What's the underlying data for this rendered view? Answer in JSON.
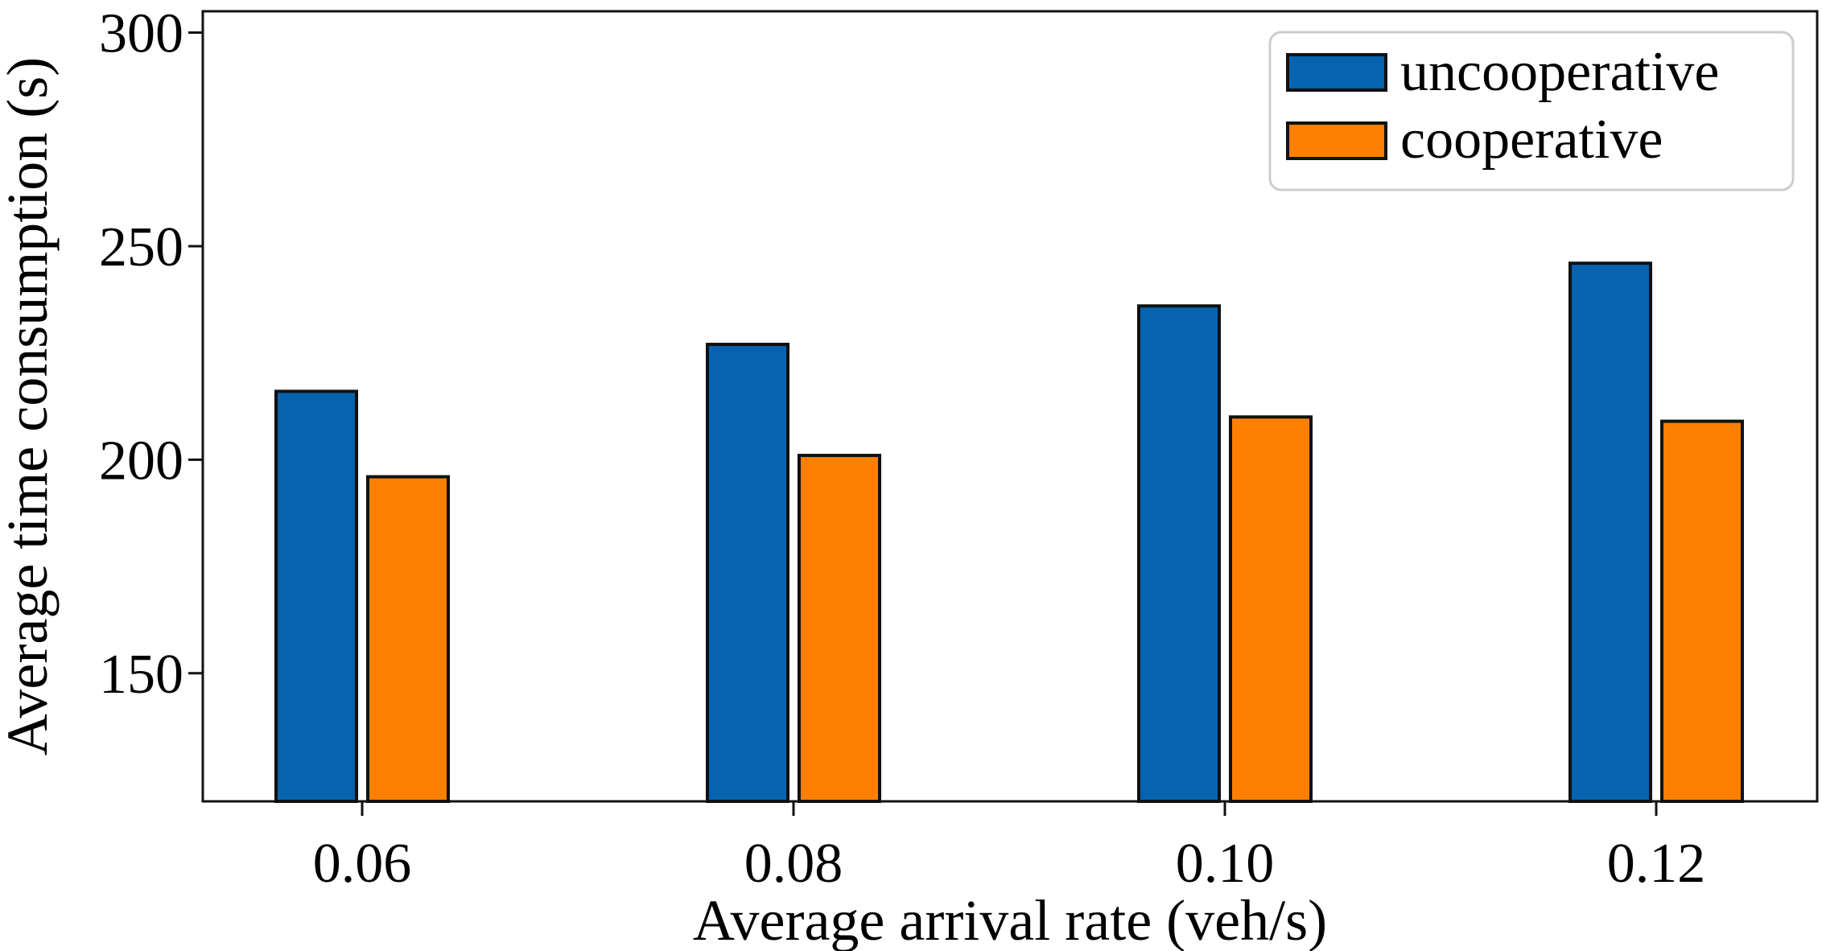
{
  "colors": {
    "uncooperative": "#0563b0",
    "cooperative": "#ff8000",
    "bar_edge": "#111111",
    "axis": "#111111",
    "legend_border": "#cccccc"
  },
  "chart_data": {
    "type": "bar",
    "title": "",
    "xlabel": "Average arrival rate (veh/s)",
    "ylabel": "Average time consumption (s)",
    "categories": [
      "0.06",
      "0.08",
      "0.10",
      "0.12"
    ],
    "series": [
      {
        "name": "uncooperative",
        "values": [
          216,
          227,
          236,
          246
        ]
      },
      {
        "name": "cooperative",
        "values": [
          196,
          201,
          210,
          209
        ]
      }
    ],
    "ylim": [
      120,
      305
    ],
    "yticks": [
      150,
      200,
      250,
      300
    ],
    "ytick_labels": [
      "150",
      "200",
      "250",
      "300"
    ],
    "grid": false,
    "legend_position": "top-right"
  }
}
